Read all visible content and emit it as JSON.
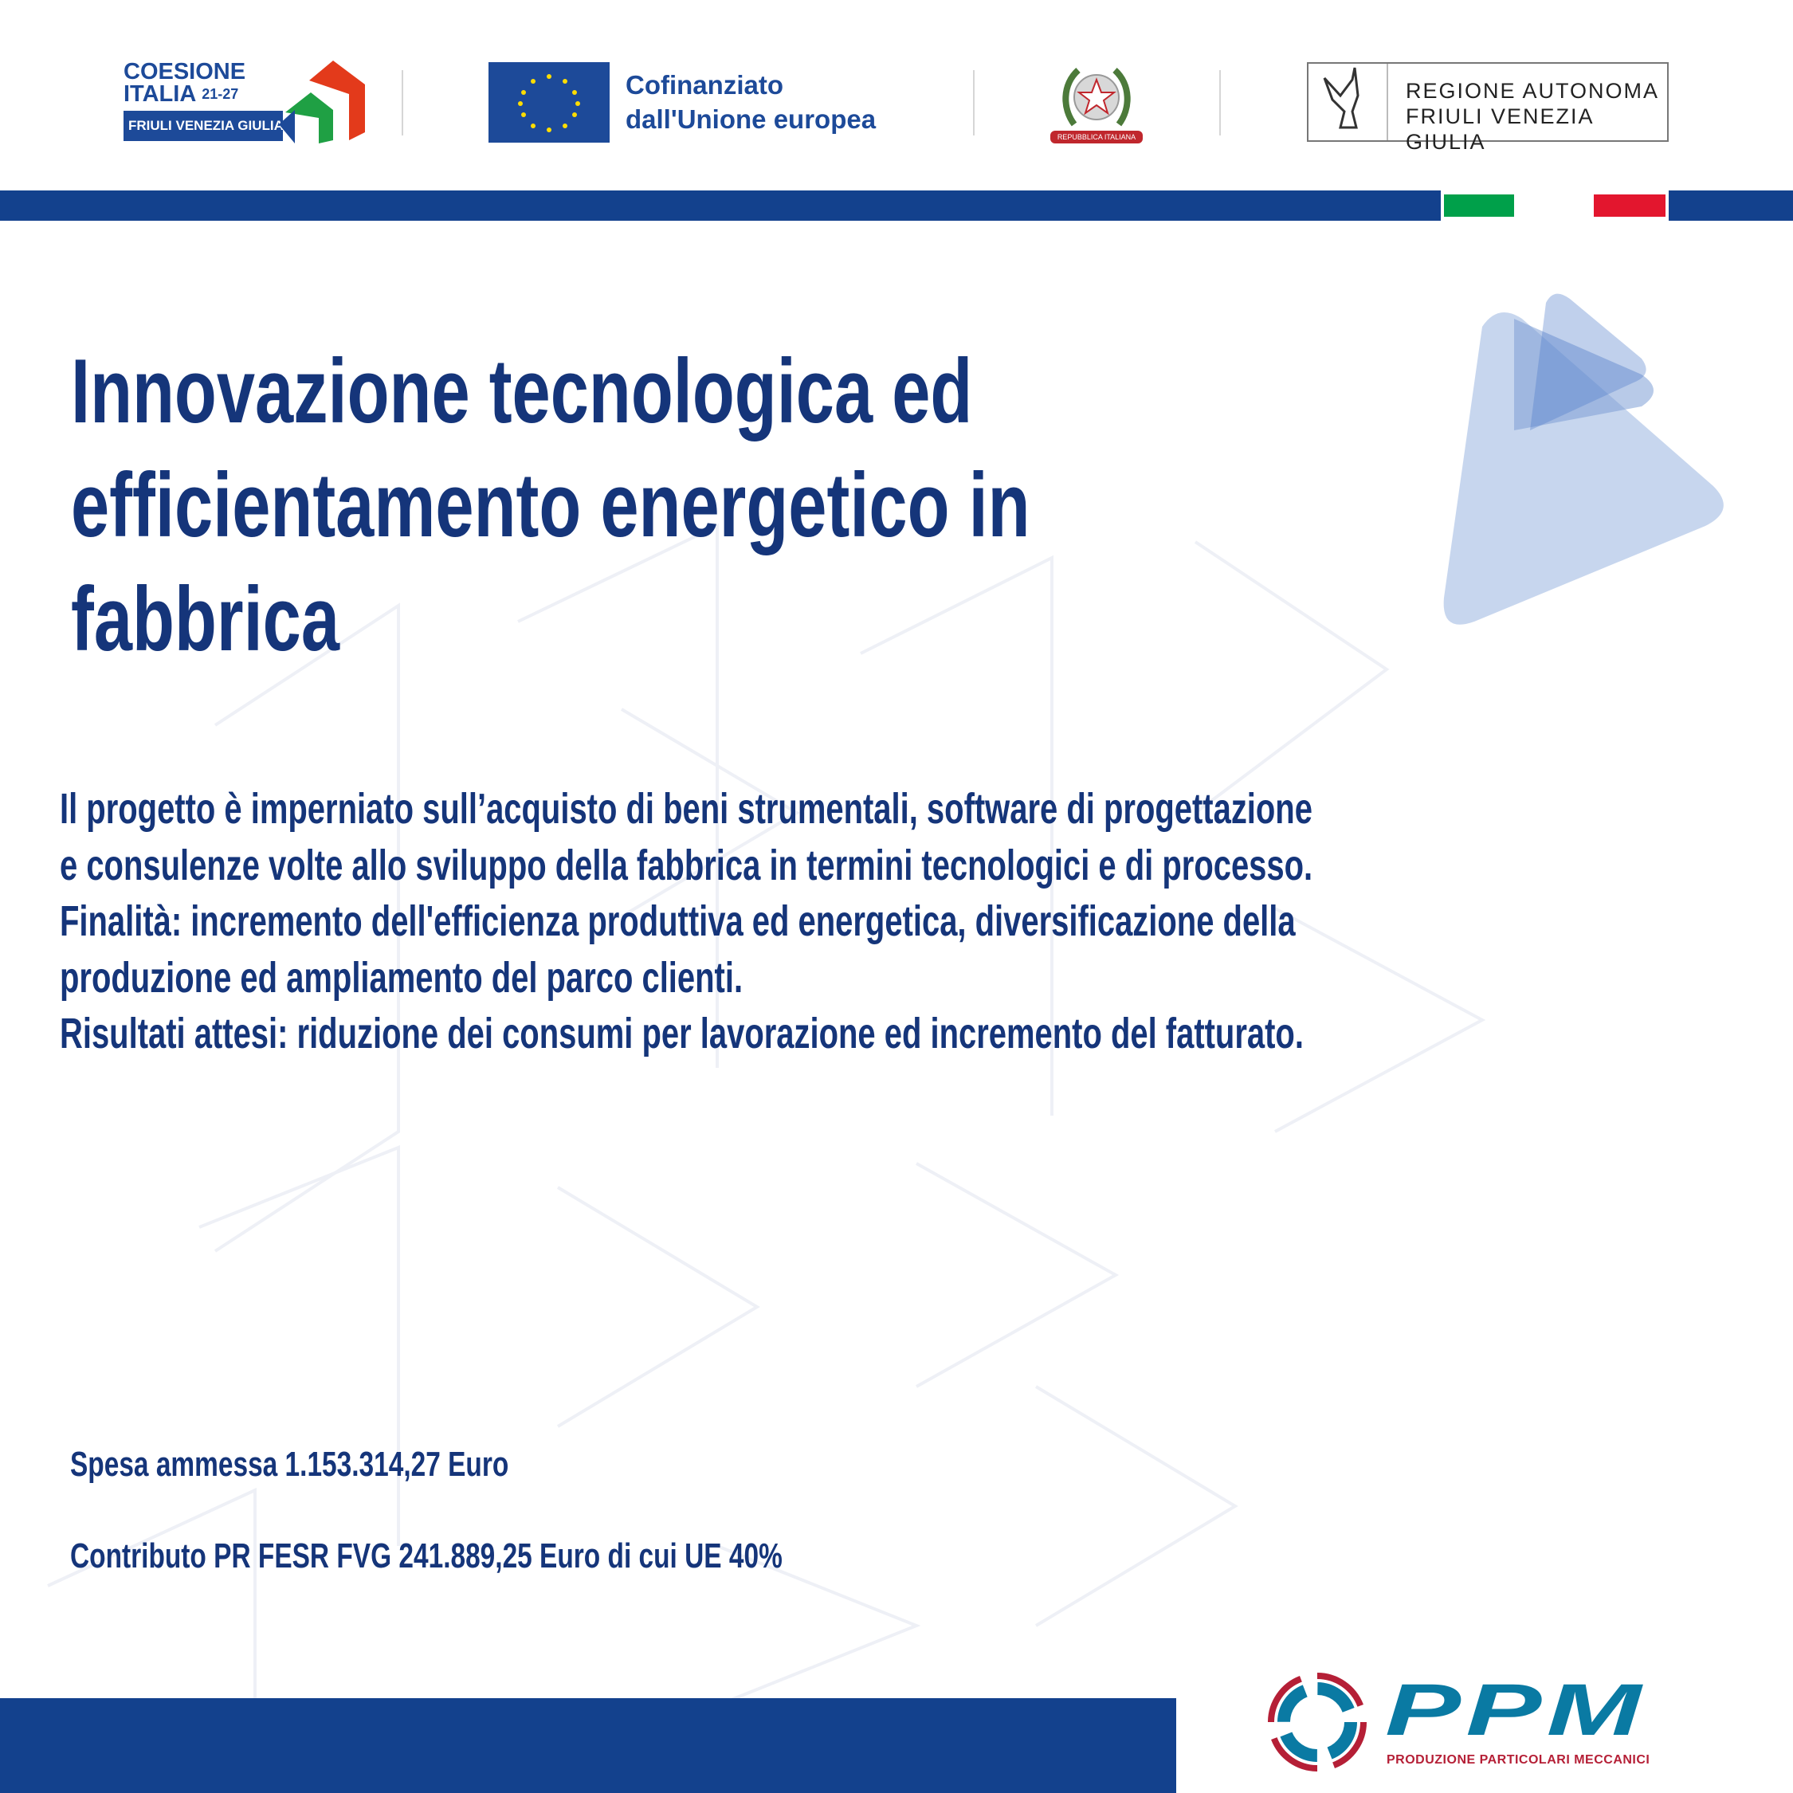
{
  "header": {
    "coesione": {
      "line1": "COESIONE",
      "line2": "ITALIA",
      "years": "21-27",
      "region": "FRIULI VENEZIA GIULIA"
    },
    "eu": {
      "line1": "Cofinanziato",
      "line2": "dall'Unione europea"
    },
    "emblem": {
      "ribbon": "REPUBBLICA ITALIANA"
    },
    "regione": {
      "line1": "REGIONE AUTONOMA",
      "line2": "FRIULI VENEZIA GIULIA"
    },
    "flag_colors": {
      "green": "#00a04a",
      "white": "#ffffff",
      "red": "#e3162e"
    }
  },
  "title_lines": [
    "Innovazione tecnologica ed",
    "efficientamento energetico in",
    "fabbrica"
  ],
  "description_lines": [
    "Il progetto è imperniato sull’acquisto di beni strumentali, software di progettazione",
    "e consulenze volte allo sviluppo della fabbrica in termini tecnologici e di processo.",
    "Finalità: incremento dell'efficienza produttiva ed energetica, diversificazione della",
    "produzione ed ampliamento del parco clienti.",
    "Risultati attesi: riduzione dei consumi per lavorazione ed incremento del fatturato."
  ],
  "funding": {
    "spesa": "Spesa ammessa 1.153.314,27 Euro",
    "contributo": "Contributo PR FESR FVG 241.889,25 Euro di cui UE 40%"
  },
  "company_logo": {
    "name": "PPM",
    "tagline": "PRODUZIONE PARTICOLARI MECCANICI"
  },
  "colors": {
    "primary": "#13418d",
    "text": "#15357a",
    "ppm_blue": "#0a7aa3",
    "ppm_red": "#b51f36"
  }
}
